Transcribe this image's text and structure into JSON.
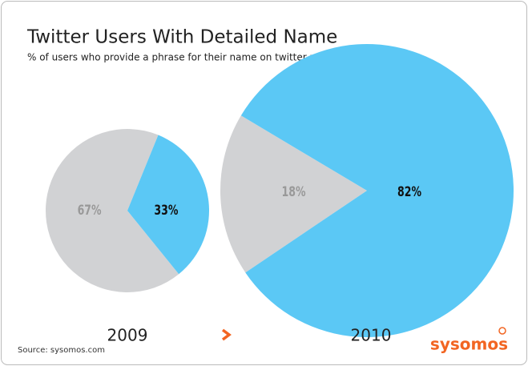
{
  "title": "Twitter Users With Detailed Name",
  "subtitle": "% of users who provide a phrase for their name on twitter profile",
  "source": "Source: sysomos.com",
  "brand": "sysomos",
  "chart_data": [
    {
      "type": "pie",
      "title": "2009",
      "values": [
        67,
        33
      ],
      "value_labels": [
        "67%",
        "33%"
      ],
      "colors": [
        "#d1d2d4",
        "#5bc8f5"
      ]
    },
    {
      "type": "pie",
      "title": "2010",
      "values": [
        18,
        82
      ],
      "value_labels": [
        "18%",
        "82%"
      ],
      "colors": [
        "#d1d2d4",
        "#5bc8f5"
      ]
    }
  ]
}
